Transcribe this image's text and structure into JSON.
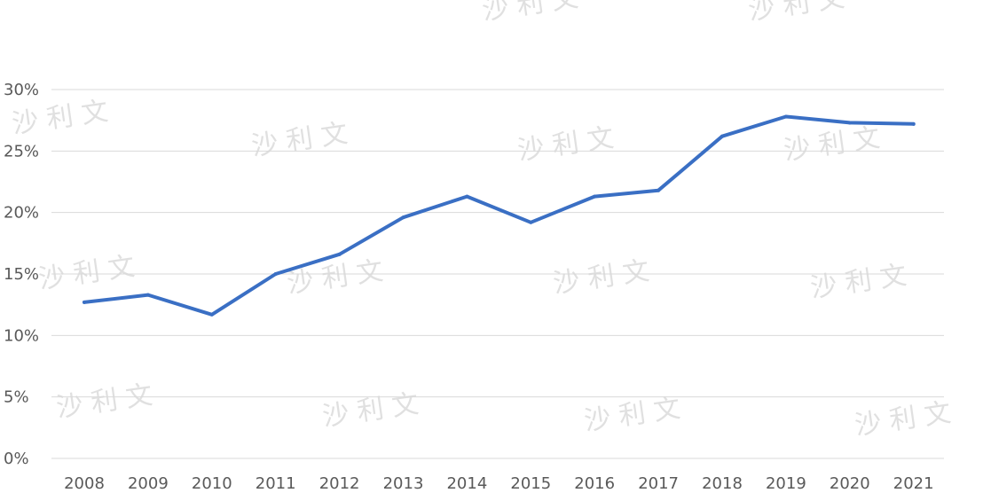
{
  "watermark": {
    "text": "沙 利 文"
  },
  "colors": {
    "line": "#3a6fc4",
    "grid": "#d9d9d9",
    "axis_text": "#595959",
    "watermark": "#c8c8c8"
  },
  "chart_data": {
    "type": "line",
    "title": "",
    "xlabel": "",
    "ylabel": "",
    "categories": [
      "2008",
      "2009",
      "2010",
      "2011",
      "2012",
      "2013",
      "2014",
      "2015",
      "2016",
      "2017",
      "2018",
      "2019",
      "2020",
      "2021"
    ],
    "series": [
      {
        "values": [
          12.7,
          13.3,
          11.7,
          15.0,
          16.6,
          19.6,
          21.3,
          19.2,
          21.3,
          21.8,
          26.2,
          27.8,
          27.3,
          27.2
        ]
      }
    ],
    "ylim": [
      0,
      30
    ],
    "y_ticks": [
      0,
      5,
      10,
      15,
      20,
      25,
      30
    ],
    "y_tick_labels": [
      "0%",
      "5%",
      "10%",
      "15%",
      "20%",
      "25%",
      "30%"
    ],
    "grid": true,
    "legend": "none"
  }
}
